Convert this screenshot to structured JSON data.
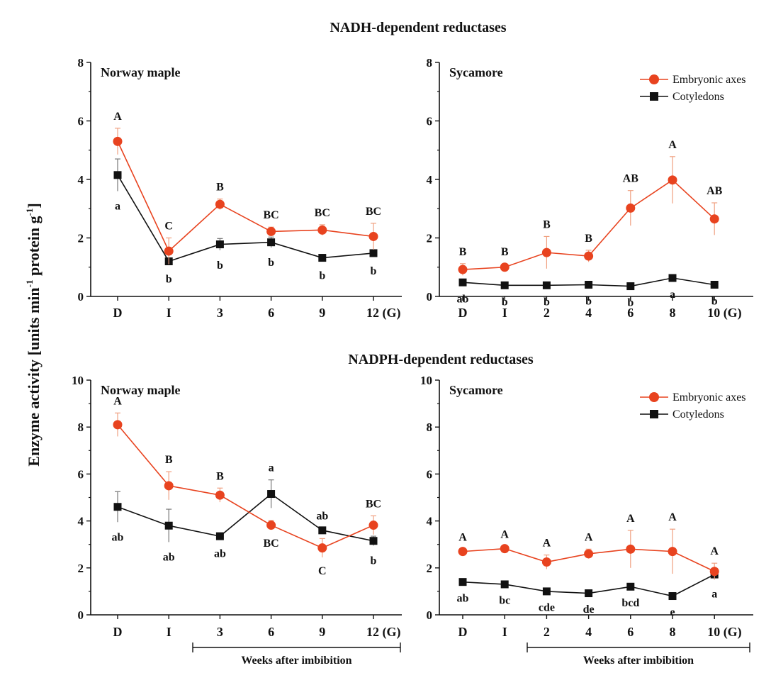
{
  "figure": {
    "ylabel_main": "Enzyme activity [units min",
    "ylabel_sup1": "-1",
    "ylabel_mid": " protein g",
    "ylabel_sup2": "-1",
    "ylabel_end": "]",
    "weeks_label": "Weeks after imbibition",
    "colors": {
      "embryonic_axes": "#e8431f",
      "cotyledons": "#111111",
      "error_bar_red": "#f0a080",
      "error_bar_black": "#777777"
    }
  },
  "chart_data": [
    {
      "type": "line",
      "group_title": "NADH-dependent reductases",
      "panel_title": "Norway maple",
      "categories": [
        "D",
        "I",
        "3",
        "6",
        "9",
        "12 (G)"
      ],
      "ylim": [
        0,
        8
      ],
      "yticks": [
        0,
        2,
        4,
        6,
        8
      ],
      "legend": false,
      "series": [
        {
          "name": "Embryonic axes",
          "values": [
            5.3,
            1.55,
            3.15,
            2.22,
            2.27,
            2.05
          ],
          "errors": [
            0.45,
            0.45,
            0.18,
            0.15,
            0.18,
            0.45
          ],
          "labels": [
            "A",
            "C",
            "B",
            "BC",
            "BC",
            "BC"
          ]
        },
        {
          "name": "Cotyledons",
          "values": [
            4.15,
            1.2,
            1.78,
            1.85,
            1.32,
            1.48
          ],
          "errors": [
            0.55,
            0.1,
            0.2,
            0.18,
            0.1,
            0.1
          ],
          "labels": [
            "a",
            "b",
            "b",
            "b",
            "b",
            "b"
          ]
        }
      ]
    },
    {
      "type": "line",
      "group_title": "",
      "panel_title": "Sycamore",
      "categories": [
        "D",
        "I",
        "2",
        "4",
        "6",
        "8",
        "10 (G)"
      ],
      "ylim": [
        0,
        8
      ],
      "yticks": [
        0,
        2,
        4,
        6,
        8
      ],
      "legend": true,
      "series": [
        {
          "name": "Embryonic axes",
          "values": [
            0.92,
            1.0,
            1.5,
            1.38,
            3.02,
            3.98,
            2.65
          ],
          "errors": [
            0.2,
            0.12,
            0.55,
            0.2,
            0.6,
            0.8,
            0.55
          ],
          "labels": [
            "B",
            "B",
            "B",
            "B",
            "AB",
            "A",
            "AB"
          ]
        },
        {
          "name": "Cotyledons",
          "values": [
            0.48,
            0.38,
            0.38,
            0.4,
            0.35,
            0.63,
            0.4
          ],
          "errors": [
            0.05,
            0.05,
            0.05,
            0.05,
            0.05,
            0.05,
            0.05
          ],
          "labels": [
            "ab",
            "b",
            "b",
            "b",
            "b",
            "a",
            "b"
          ]
        }
      ]
    },
    {
      "type": "line",
      "group_title": "NADPH-dependent reductases",
      "panel_title": "Norway maple",
      "categories": [
        "D",
        "I",
        "3",
        "6",
        "9",
        "12 (G)"
      ],
      "ylim": [
        0,
        10
      ],
      "yticks": [
        0,
        2,
        4,
        6,
        8,
        10
      ],
      "legend": false,
      "series": [
        {
          "name": "Embryonic axes",
          "values": [
            8.1,
            5.5,
            5.1,
            3.82,
            2.85,
            3.82
          ],
          "errors": [
            0.5,
            0.6,
            0.3,
            0.2,
            0.4,
            0.4
          ],
          "labels": [
            "A",
            "B",
            "B",
            "BC",
            "C",
            "BC"
          ]
        },
        {
          "name": "Cotyledons",
          "values": [
            4.6,
            3.8,
            3.35,
            5.15,
            3.6,
            3.15
          ],
          "errors": [
            0.65,
            0.7,
            0.1,
            0.6,
            0.1,
            0.2
          ],
          "labels": [
            "ab",
            "ab",
            "ab",
            "a",
            "ab",
            "b"
          ]
        }
      ]
    },
    {
      "type": "line",
      "group_title": "",
      "panel_title": "Sycamore",
      "categories": [
        "D",
        "I",
        "2",
        "4",
        "6",
        "8",
        "10 (G)"
      ],
      "ylim": [
        0,
        10
      ],
      "yticks": [
        0,
        2,
        4,
        6,
        8,
        10
      ],
      "legend": true,
      "series": [
        {
          "name": "Embryonic axes",
          "values": [
            2.7,
            2.82,
            2.25,
            2.6,
            2.8,
            2.7,
            1.85
          ],
          "errors": [
            0.1,
            0.1,
            0.3,
            0.2,
            0.8,
            0.95,
            0.35
          ],
          "labels": [
            "A",
            "A",
            "A",
            "A",
            "A",
            "A",
            "A"
          ]
        },
        {
          "name": "Cotyledons",
          "values": [
            1.4,
            1.3,
            1.0,
            0.92,
            1.2,
            0.8,
            1.72
          ],
          "errors": [
            0.05,
            0.05,
            0.05,
            0.05,
            0.05,
            0.05,
            0.2
          ],
          "labels": [
            "ab",
            "bc",
            "cde",
            "de",
            "bcd",
            "e",
            "a"
          ]
        }
      ]
    }
  ]
}
